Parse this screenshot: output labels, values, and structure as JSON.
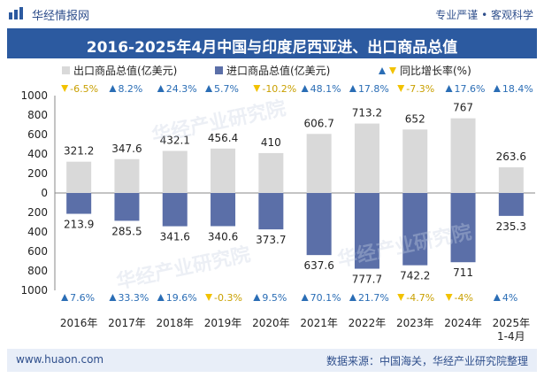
{
  "header": {
    "brand": "华经情报网",
    "slogan": "专业严谨 • 客观科学"
  },
  "title": "2016-2025年4月中国与印度尼西亚进、出口商品总值",
  "footer": {
    "site": "www.huaon.com",
    "source": "数据来源：中国海关，华经产业研究院整理"
  },
  "watermark": "华经产业研究院",
  "colors": {
    "export_bar": "#d9d9d9",
    "import_bar": "#5b6fa8",
    "up": "#2a6db5",
    "down": "#f2c200",
    "title_bg": "#2c5aa0"
  },
  "chart_data": {
    "type": "bar",
    "legend": [
      "出口商品总值(亿美元)",
      "进口商品总值(亿美元)",
      "同比增长率(%)"
    ],
    "categories": [
      "2016年",
      "2017年",
      "2018年",
      "2019年",
      "2020年",
      "2021年",
      "2022年",
      "2023年",
      "2024年",
      "2025年\n1-4月"
    ],
    "series": [
      {
        "name": "出口商品总值(亿美元)",
        "values": [
          321.2,
          347.6,
          432.1,
          456.4,
          410,
          606.7,
          713.2,
          652,
          767,
          263.6
        ]
      },
      {
        "name": "进口商品总值(亿美元)",
        "values": [
          213.9,
          285.5,
          341.6,
          340.6,
          373.7,
          637.6,
          777.7,
          742.2,
          711,
          235.3
        ]
      }
    ],
    "export_growth": [
      -6.5,
      8.2,
      24.3,
      5.7,
      -10.2,
      48.1,
      17.8,
      -7.3,
      17.6,
      18.4
    ],
    "import_growth": [
      7.6,
      33.3,
      19.6,
      -0.3,
      9.5,
      70.1,
      21.7,
      -4.7,
      -4,
      4
    ],
    "export_growth_labels": [
      "-6.5%",
      "8.2%",
      "24.3%",
      "5.7%",
      "-10.2%",
      "48.1%",
      "17.8%",
      "-7.3%",
      "17.6%",
      "18.4%"
    ],
    "import_growth_labels": [
      "7.6%",
      "33.3%",
      "19.6%",
      "-0.3%",
      "9.5%",
      "70.1%",
      "21.7%",
      "-4.7%",
      "-4%",
      "4%"
    ],
    "ylim": [
      -1000,
      1000
    ],
    "yticks": [
      1000,
      800,
      600,
      400,
      200,
      0,
      200,
      400,
      600,
      800,
      1000
    ],
    "legend_position": "top",
    "grid": false
  }
}
